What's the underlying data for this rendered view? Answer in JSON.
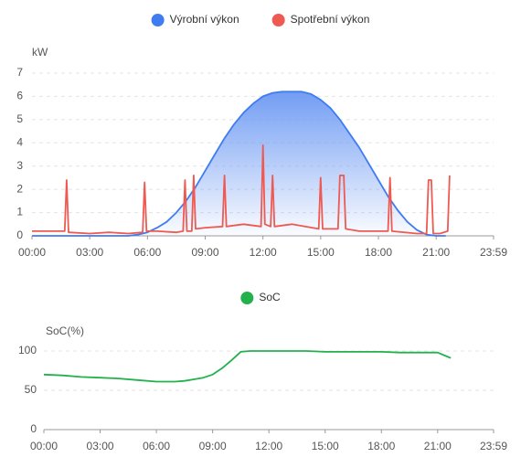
{
  "chart_data": [
    {
      "type": "line",
      "ylabel": "kW",
      "grid": true,
      "xlim": [
        0,
        23.983
      ],
      "ylim": [
        0,
        7
      ],
      "xticks": [
        {
          "value": 0,
          "label": "00:00"
        },
        {
          "value": 3,
          "label": "03:00"
        },
        {
          "value": 6,
          "label": "06:00"
        },
        {
          "value": 9,
          "label": "09:00"
        },
        {
          "value": 12,
          "label": "12:00"
        },
        {
          "value": 15,
          "label": "15:00"
        },
        {
          "value": 18,
          "label": "18:00"
        },
        {
          "value": 21,
          "label": "21:00"
        },
        {
          "value": 23.983,
          "label": "23:59"
        }
      ],
      "yticks": [
        0,
        1,
        2,
        3,
        4,
        5,
        6,
        7
      ],
      "series": [
        {
          "name": "Výrobní výkon",
          "color": "#3f7cf0",
          "fill": true,
          "x": [
            0,
            4,
            5,
            5.5,
            6,
            6.5,
            7,
            7.5,
            8,
            8.5,
            9,
            9.5,
            10,
            10.5,
            11,
            11.5,
            12,
            12.5,
            13,
            13.5,
            14,
            14.5,
            15,
            15.5,
            16,
            16.5,
            17,
            17.5,
            18,
            18.5,
            19,
            19.5,
            20,
            20.5,
            21,
            21.5
          ],
          "values": [
            0,
            0,
            0,
            0.05,
            0.15,
            0.35,
            0.6,
            1.0,
            1.5,
            2.1,
            2.8,
            3.5,
            4.2,
            4.8,
            5.3,
            5.7,
            6.0,
            6.15,
            6.2,
            6.2,
            6.2,
            6.1,
            5.85,
            5.5,
            5.0,
            4.4,
            3.8,
            3.1,
            2.4,
            1.7,
            1.1,
            0.6,
            0.25,
            0.05,
            0,
            0
          ]
        },
        {
          "name": "Spotřební výkon",
          "color": "#ee5a52",
          "fill": false,
          "x": [
            0,
            1.7,
            1.8,
            1.9,
            3,
            4,
            5,
            5.75,
            5.85,
            5.95,
            6.5,
            7.5,
            7.85,
            7.95,
            8.05,
            8.3,
            8.4,
            8.5,
            9,
            9.9,
            10,
            10.1,
            11,
            11.9,
            12,
            12.1,
            12.4,
            12.5,
            12.6,
            13.5,
            14.9,
            15,
            15.1,
            15.9,
            16,
            16.2,
            16.3,
            17,
            18.5,
            18.6,
            18.7,
            20,
            20.5,
            20.6,
            20.75,
            20.85,
            21.2,
            21.6,
            21.7
          ],
          "values": [
            0.2,
            0.2,
            2.4,
            0.15,
            0.1,
            0.15,
            0.1,
            0.15,
            2.3,
            0.2,
            0.2,
            0.15,
            0.2,
            2.4,
            0.2,
            0.2,
            2.6,
            0.3,
            0.35,
            0.4,
            2.6,
            0.4,
            0.5,
            0.4,
            3.9,
            0.5,
            0.4,
            2.6,
            0.4,
            0.5,
            0.3,
            2.5,
            0.3,
            0.3,
            2.6,
            2.6,
            0.3,
            0.2,
            0.2,
            2.5,
            0.2,
            0.1,
            0.1,
            2.4,
            2.4,
            0.1,
            0.1,
            0.2,
            2.6
          ]
        }
      ]
    },
    {
      "type": "line",
      "ylabel": "SoC(%)",
      "grid": true,
      "xlim": [
        0,
        23.983
      ],
      "ylim": [
        0,
        100
      ],
      "xticks": [
        {
          "value": 0,
          "label": "00:00"
        },
        {
          "value": 3,
          "label": "03:00"
        },
        {
          "value": 6,
          "label": "06:00"
        },
        {
          "value": 9,
          "label": "09:00"
        },
        {
          "value": 12,
          "label": "12:00"
        },
        {
          "value": 15,
          "label": "15:00"
        },
        {
          "value": 18,
          "label": "18:00"
        },
        {
          "value": 21,
          "label": "21:00"
        },
        {
          "value": 23.983,
          "label": "23:59"
        }
      ],
      "yticks": [
        0,
        50,
        100
      ],
      "series": [
        {
          "name": "SoC",
          "color": "#22b14c",
          "fill": false,
          "x": [
            0,
            1,
            2,
            3,
            4,
            5,
            6,
            7,
            7.5,
            8,
            8.5,
            9,
            9.5,
            10,
            10.5,
            11,
            12,
            13,
            14,
            15,
            16,
            17,
            18,
            19,
            20,
            21,
            21.5,
            21.7
          ],
          "values": [
            70,
            69,
            67,
            66,
            65,
            63,
            61,
            61,
            62,
            64,
            66,
            70,
            78,
            88,
            99,
            100,
            100,
            100,
            100,
            99,
            99,
            99,
            99,
            98,
            98,
            98,
            93,
            91
          ]
        }
      ]
    }
  ]
}
